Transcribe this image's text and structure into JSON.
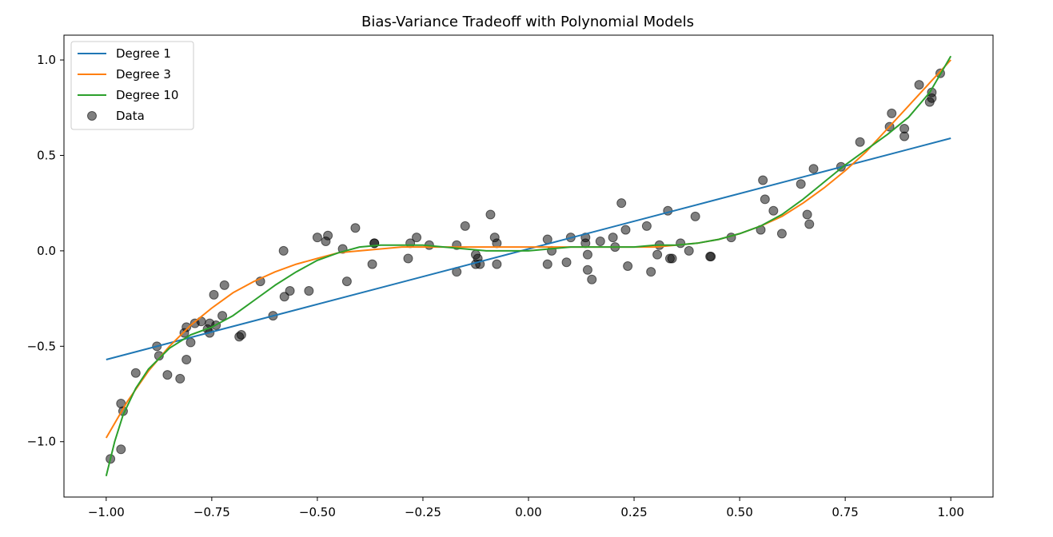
{
  "chart_data": {
    "type": "line",
    "title": "Bias-Variance Tradeoff with Polynomial Models",
    "xlabel": "",
    "ylabel": "",
    "xlim": [
      -1.1,
      1.1
    ],
    "ylim": [
      -1.29,
      1.13
    ],
    "grid": false,
    "legend_position": "top-left",
    "x_ticks": [
      -1.0,
      -0.75,
      -0.5,
      -0.25,
      0.0,
      0.25,
      0.5,
      0.75,
      1.0
    ],
    "x_tick_labels": [
      "−1.00",
      "−0.75",
      "−0.50",
      "−0.25",
      "0.00",
      "0.25",
      "0.50",
      "0.75",
      "1.00"
    ],
    "y_ticks": [
      -1.0,
      -0.5,
      0.0,
      0.5,
      1.0
    ],
    "y_tick_labels": [
      "−1.0",
      "−0.5",
      "0.0",
      "0.5",
      "1.0"
    ],
    "series": [
      {
        "name": "Degree 1",
        "kind": "line",
        "color": "#1f77b4",
        "x": [
          -1.0,
          1.0
        ],
        "y": [
          -0.57,
          0.59
        ]
      },
      {
        "name": "Degree 3",
        "kind": "line",
        "color": "#ff7f0e",
        "x": [
          -1.0,
          -0.95,
          -0.9,
          -0.85,
          -0.8,
          -0.75,
          -0.7,
          -0.65,
          -0.6,
          -0.55,
          -0.5,
          -0.45,
          -0.4,
          -0.35,
          -0.3,
          -0.25,
          -0.2,
          -0.15,
          -0.1,
          -0.05,
          0.0,
          0.05,
          0.1,
          0.15,
          0.2,
          0.25,
          0.3,
          0.35,
          0.4,
          0.45,
          0.5,
          0.55,
          0.6,
          0.65,
          0.7,
          0.75,
          0.8,
          0.85,
          0.9,
          0.95,
          1.0
        ],
        "y": [
          -0.98,
          -0.79,
          -0.63,
          -0.5,
          -0.39,
          -0.3,
          -0.22,
          -0.16,
          -0.11,
          -0.07,
          -0.04,
          -0.01,
          0.0,
          0.01,
          0.02,
          0.02,
          0.02,
          0.02,
          0.02,
          0.02,
          0.02,
          0.02,
          0.02,
          0.02,
          0.02,
          0.02,
          0.02,
          0.03,
          0.04,
          0.06,
          0.09,
          0.13,
          0.18,
          0.25,
          0.33,
          0.42,
          0.52,
          0.64,
          0.76,
          0.88,
          1.0
        ]
      },
      {
        "name": "Degree 10",
        "kind": "line",
        "color": "#2ca02c",
        "x": [
          -1.0,
          -0.98,
          -0.96,
          -0.93,
          -0.9,
          -0.85,
          -0.8,
          -0.75,
          -0.7,
          -0.65,
          -0.6,
          -0.55,
          -0.5,
          -0.45,
          -0.4,
          -0.35,
          -0.3,
          -0.25,
          -0.2,
          -0.15,
          -0.1,
          -0.05,
          0.0,
          0.05,
          0.1,
          0.15,
          0.2,
          0.25,
          0.3,
          0.35,
          0.4,
          0.45,
          0.5,
          0.55,
          0.6,
          0.65,
          0.7,
          0.75,
          0.8,
          0.85,
          0.9,
          0.95,
          1.0
        ],
        "y": [
          -1.18,
          -1.0,
          -0.86,
          -0.72,
          -0.62,
          -0.51,
          -0.44,
          -0.4,
          -0.34,
          -0.26,
          -0.18,
          -0.11,
          -0.05,
          -0.01,
          0.02,
          0.03,
          0.03,
          0.03,
          0.02,
          0.01,
          0.0,
          0.0,
          0.0,
          0.01,
          0.02,
          0.02,
          0.02,
          0.02,
          0.03,
          0.03,
          0.04,
          0.06,
          0.09,
          0.13,
          0.19,
          0.27,
          0.36,
          0.45,
          0.53,
          0.61,
          0.7,
          0.83,
          1.02
        ]
      },
      {
        "name": "Data",
        "kind": "scatter",
        "color": "#000000",
        "x": [
          -0.99,
          -0.965,
          -0.965,
          -0.96,
          -0.93,
          -0.88,
          -0.875,
          -0.855,
          -0.825,
          -0.815,
          -0.81,
          -0.81,
          -0.8,
          -0.79,
          -0.775,
          -0.76,
          -0.755,
          -0.755,
          -0.745,
          -0.74,
          -0.725,
          -0.72,
          -0.685,
          -0.68,
          -0.635,
          -0.605,
          -0.58,
          -0.578,
          -0.565,
          -0.52,
          -0.5,
          -0.48,
          -0.475,
          -0.44,
          -0.43,
          -0.41,
          -0.37,
          -0.365,
          -0.365,
          -0.285,
          -0.28,
          -0.265,
          -0.235,
          -0.17,
          -0.17,
          -0.15,
          -0.125,
          -0.125,
          -0.12,
          -0.115,
          -0.09,
          -0.08,
          -0.075,
          -0.075,
          0.045,
          0.045,
          0.055,
          0.09,
          0.1,
          0.135,
          0.135,
          0.14,
          0.14,
          0.15,
          0.17,
          0.2,
          0.205,
          0.22,
          0.23,
          0.235,
          0.28,
          0.29,
          0.305,
          0.31,
          0.33,
          0.335,
          0.34,
          0.36,
          0.38,
          0.395,
          0.43,
          0.432,
          0.48,
          0.55,
          0.555,
          0.56,
          0.58,
          0.6,
          0.645,
          0.66,
          0.665,
          0.675,
          0.74,
          0.785,
          0.855,
          0.86,
          0.89,
          0.89,
          0.925,
          0.95,
          0.955,
          0.955,
          0.975
        ],
        "y": [
          -1.09,
          -1.04,
          -0.8,
          -0.84,
          -0.64,
          -0.5,
          -0.55,
          -0.65,
          -0.67,
          -0.43,
          -0.4,
          -0.57,
          -0.48,
          -0.38,
          -0.37,
          -0.41,
          -0.43,
          -0.38,
          -0.23,
          -0.39,
          -0.34,
          -0.18,
          -0.45,
          -0.44,
          -0.16,
          -0.34,
          0.0,
          -0.24,
          -0.21,
          -0.21,
          0.07,
          0.05,
          0.08,
          0.01,
          -0.16,
          0.12,
          -0.07,
          0.04,
          0.04,
          -0.04,
          0.04,
          0.07,
          0.03,
          -0.11,
          0.03,
          0.13,
          -0.07,
          -0.02,
          -0.04,
          -0.07,
          0.19,
          0.07,
          0.04,
          -0.07,
          0.06,
          -0.07,
          0.0,
          -0.06,
          0.07,
          0.07,
          0.04,
          -0.02,
          -0.1,
          -0.15,
          0.05,
          0.07,
          0.02,
          0.25,
          0.11,
          -0.08,
          0.13,
          -0.11,
          -0.02,
          0.03,
          0.21,
          -0.04,
          -0.04,
          0.04,
          0.0,
          0.18,
          -0.03,
          -0.03,
          0.07,
          0.11,
          0.37,
          0.27,
          0.21,
          0.09,
          0.35,
          0.19,
          0.14,
          0.43,
          0.44,
          0.57,
          0.65,
          0.72,
          0.64,
          0.6,
          0.87,
          0.78,
          0.8,
          0.83,
          0.93
        ]
      }
    ]
  }
}
